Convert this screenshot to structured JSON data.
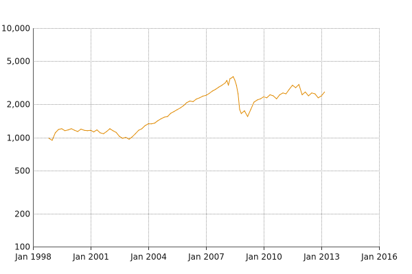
{
  "chart_data": {
    "type": "line",
    "title": "",
    "xlabel": "",
    "ylabel": "",
    "yscale": "log",
    "ylim": [
      100,
      10000
    ],
    "xlim": [
      "1998-01-01",
      "2016-01-01"
    ],
    "grid": true,
    "legend": "none",
    "y_ticks": [
      {
        "value": 100,
        "label": "100"
      },
      {
        "value": 200,
        "label": "200"
      },
      {
        "value": 500,
        "label": "500"
      },
      {
        "value": 1000,
        "label": "1,000"
      },
      {
        "value": 2000,
        "label": "2,000"
      },
      {
        "value": 5000,
        "label": "5,000"
      },
      {
        "value": 10000,
        "label": "10,000"
      }
    ],
    "x_ticks": [
      {
        "value": "1998-01-01",
        "label": "Jan 1998"
      },
      {
        "value": "2001-01-01",
        "label": "Jan 2001"
      },
      {
        "value": "2004-01-01",
        "label": "Jan 2004"
      },
      {
        "value": "2007-01-01",
        "label": "Jan 2007"
      },
      {
        "value": "2010-01-01",
        "label": "Jan 2010"
      },
      {
        "value": "2013-01-01",
        "label": "Jan 2013"
      },
      {
        "value": "2016-01-01",
        "label": "Jan 2016"
      }
    ],
    "series": [
      {
        "color": "#e08a00",
        "x": [
          "1998-11-01",
          "1999-01-01",
          "1999-03-01",
          "1999-05-01",
          "1999-07-01",
          "1999-09-01",
          "1999-11-01",
          "2000-01-01",
          "2000-03-01",
          "2000-05-01",
          "2000-07-01",
          "2000-09-01",
          "2000-11-01",
          "2001-01-01",
          "2001-03-01",
          "2001-05-01",
          "2001-07-01",
          "2001-09-01",
          "2001-11-01",
          "2002-01-01",
          "2002-03-01",
          "2002-05-01",
          "2002-07-01",
          "2002-09-01",
          "2002-11-01",
          "2003-01-01",
          "2003-03-01",
          "2003-05-01",
          "2003-07-01",
          "2003-09-01",
          "2003-11-01",
          "2004-01-01",
          "2004-03-01",
          "2004-05-01",
          "2004-07-01",
          "2004-09-01",
          "2004-11-01",
          "2005-01-01",
          "2005-03-01",
          "2005-05-01",
          "2005-07-01",
          "2005-09-01",
          "2005-11-01",
          "2006-01-01",
          "2006-03-01",
          "2006-05-01",
          "2006-07-01",
          "2006-09-01",
          "2006-11-01",
          "2007-01-01",
          "2007-03-01",
          "2007-05-01",
          "2007-07-01",
          "2007-09-01",
          "2007-11-01",
          "2008-01-01",
          "2008-02-01",
          "2008-03-01",
          "2008-04-01",
          "2008-05-01",
          "2008-06-01",
          "2008-07-01",
          "2008-08-01",
          "2008-09-01",
          "2008-10-01",
          "2008-11-01",
          "2009-01-01",
          "2009-03-01",
          "2009-05-01",
          "2009-07-01",
          "2009-09-01",
          "2009-11-01",
          "2010-01-01",
          "2010-03-01",
          "2010-05-01",
          "2010-07-01",
          "2010-09-01",
          "2010-11-01",
          "2011-01-01",
          "2011-03-01",
          "2011-05-01",
          "2011-07-01",
          "2011-09-01",
          "2011-11-01",
          "2012-01-01",
          "2012-03-01",
          "2012-05-01",
          "2012-07-01",
          "2012-09-01",
          "2012-11-01",
          "2013-01-01",
          "2013-03-01"
        ],
        "y": [
          980,
          940,
          1100,
          1180,
          1200,
          1150,
          1170,
          1200,
          1160,
          1130,
          1190,
          1160,
          1150,
          1160,
          1120,
          1170,
          1100,
          1080,
          1130,
          1200,
          1150,
          1110,
          1020,
          980,
          1000,
          960,
          1010,
          1080,
          1160,
          1200,
          1280,
          1330,
          1330,
          1350,
          1420,
          1480,
          1530,
          1550,
          1660,
          1720,
          1790,
          1860,
          1950,
          2080,
          2150,
          2120,
          2240,
          2300,
          2380,
          2420,
          2520,
          2650,
          2750,
          2880,
          3000,
          3150,
          3320,
          3000,
          3450,
          3500,
          3600,
          3350,
          3000,
          2500,
          1800,
          1650,
          1750,
          1550,
          1800,
          2100,
          2200,
          2250,
          2350,
          2300,
          2450,
          2400,
          2250,
          2450,
          2550,
          2500,
          2750,
          3000,
          2850,
          3050,
          2450,
          2600,
          2400,
          2550,
          2500,
          2300,
          2400,
          2600
        ]
      }
    ]
  }
}
